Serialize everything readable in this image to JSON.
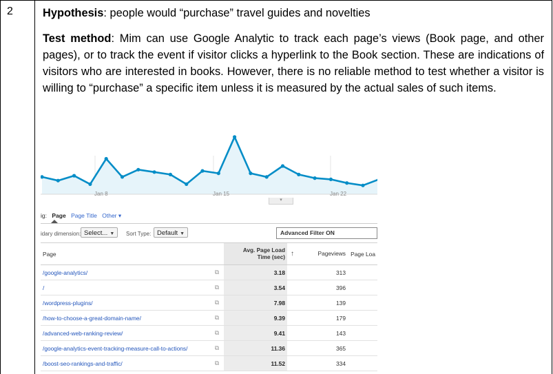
{
  "row": {
    "number": "2",
    "hypothesis_label": "Hypothesis",
    "hypothesis_text": ": people would “purchase” travel guides and novelties",
    "test_label": "Test method",
    "test_text": ": Mim can use Google Analytic to track each page’s views (Book page, and other pages), or to track the event if visitor clicks a hyperlink to the Book section. These are indications of visitors who are interested in books. However, there is no reliable method to test whether a visitor is willing to “purchase” a specific item unless it is measured by the actual sales of such items."
  },
  "chart_data": {
    "type": "area",
    "x_tick_labels": [
      "Jan 8",
      "Jan 15",
      "Jan 22"
    ],
    "values": [
      57,
      54,
      58,
      51,
      72,
      57,
      63,
      61,
      59,
      51,
      62,
      60,
      90,
      60,
      57,
      66,
      59,
      56,
      55,
      52,
      50,
      55
    ],
    "colors": {
      "line": "#058dc7",
      "fill": "#e6f4fa"
    }
  },
  "ga": {
    "view_prefix": "ig:",
    "view_active": "Page",
    "view_link": "Page Title",
    "view_other": "Other ▾",
    "secondary_label": "idary dimension:",
    "secondary_value": "Select...",
    "sort_label": "Sort Type:",
    "sort_value": "Default",
    "filter": "Advanced Filter ON",
    "collapse_glyph": "▾",
    "columns": {
      "page": "Page",
      "load_time_line1": "Avg. Page Load",
      "load_time_line2": "Time (sec)",
      "sort_arrow": "↑",
      "pageviews": "Pageviews",
      "page_load": "Page Loa"
    },
    "rows": [
      {
        "page": "/google-analytics/",
        "icon": "⧉",
        "time": "3.18",
        "views": "313"
      },
      {
        "page": "/",
        "icon": "⧉",
        "time": "3.54",
        "views": "396"
      },
      {
        "page": "/wordpress-plugins/",
        "icon": "⧉",
        "time": "7.98",
        "views": "139"
      },
      {
        "page": "/how-to-choose-a-great-domain-name/",
        "icon": "⧉",
        "time": "9.39",
        "views": "179"
      },
      {
        "page": "/advanced-web-ranking-review/",
        "icon": "⧉",
        "time": "9.41",
        "views": "143"
      },
      {
        "page": "/google-analytics-event-tracking-measure-call-to-actions/",
        "icon": "⧉",
        "time": "11.36",
        "views": "365"
      },
      {
        "page": "/boost-seo-rankings-and-traffic/",
        "icon": "⧉",
        "time": "11.52",
        "views": "334"
      }
    ]
  }
}
